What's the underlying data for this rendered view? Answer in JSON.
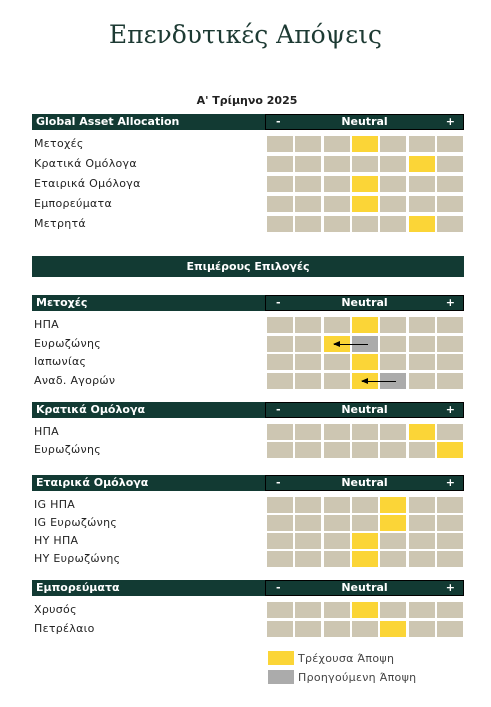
{
  "title": "Επενδυτικές Απόψεις",
  "quarter": "Α' Τρίμηνο 2025",
  "scale": {
    "minus": "-",
    "neutral": "Neutral",
    "plus": "+"
  },
  "banner": "Επιμέρους Επιλογές",
  "sections": [
    {
      "header": "Global Asset Allocation",
      "rows": [
        {
          "label": "Μετοχές",
          "current": 3
        },
        {
          "label": "Κρατικά Ομόλογα",
          "current": 5
        },
        {
          "label": "Εταιρικά Ομόλογα",
          "current": 3
        },
        {
          "label": "Εμπορεύματα",
          "current": 3
        },
        {
          "label": "Μετρητά",
          "current": 5
        }
      ]
    },
    {
      "header": "Μετοχές",
      "rows": [
        {
          "label": "ΗΠΑ",
          "current": 3
        },
        {
          "label": "Ευρωζώνης",
          "current": 2,
          "previous": 3
        },
        {
          "label": "Ιαπωνίας",
          "current": 3
        },
        {
          "label": "Αναδ. Αγορών",
          "current": 3,
          "previous": 4
        }
      ]
    },
    {
      "header": "Κρατικά Ομόλογα",
      "rows": [
        {
          "label": "ΗΠΑ",
          "current": 5
        },
        {
          "label": "Ευρωζώνης",
          "current": 6
        }
      ]
    },
    {
      "header": "Εταιρικά Ομόλογα",
      "rows": [
        {
          "label": "IG ΗΠΑ",
          "current": 4
        },
        {
          "label": "IG Ευρωζώνης",
          "current": 4
        },
        {
          "label": "HY ΗΠΑ",
          "current": 3
        },
        {
          "label": "HY Ευρωζώνης",
          "current": 3
        }
      ]
    },
    {
      "header": "Εμπορεύματα",
      "rows": [
        {
          "label": "Χρυσός",
          "current": 3
        },
        {
          "label": "Πετρέλαιο",
          "current": 4
        }
      ]
    }
  ],
  "legend": {
    "current_label": "Τρέχουσα Άποψη",
    "previous_label": "Προηγούμενη Άποψη"
  },
  "colors": {
    "current": "#fbd537",
    "previous": "#ababab",
    "neutral_cell": "#cdc6b2",
    "header": "#123a33"
  }
}
